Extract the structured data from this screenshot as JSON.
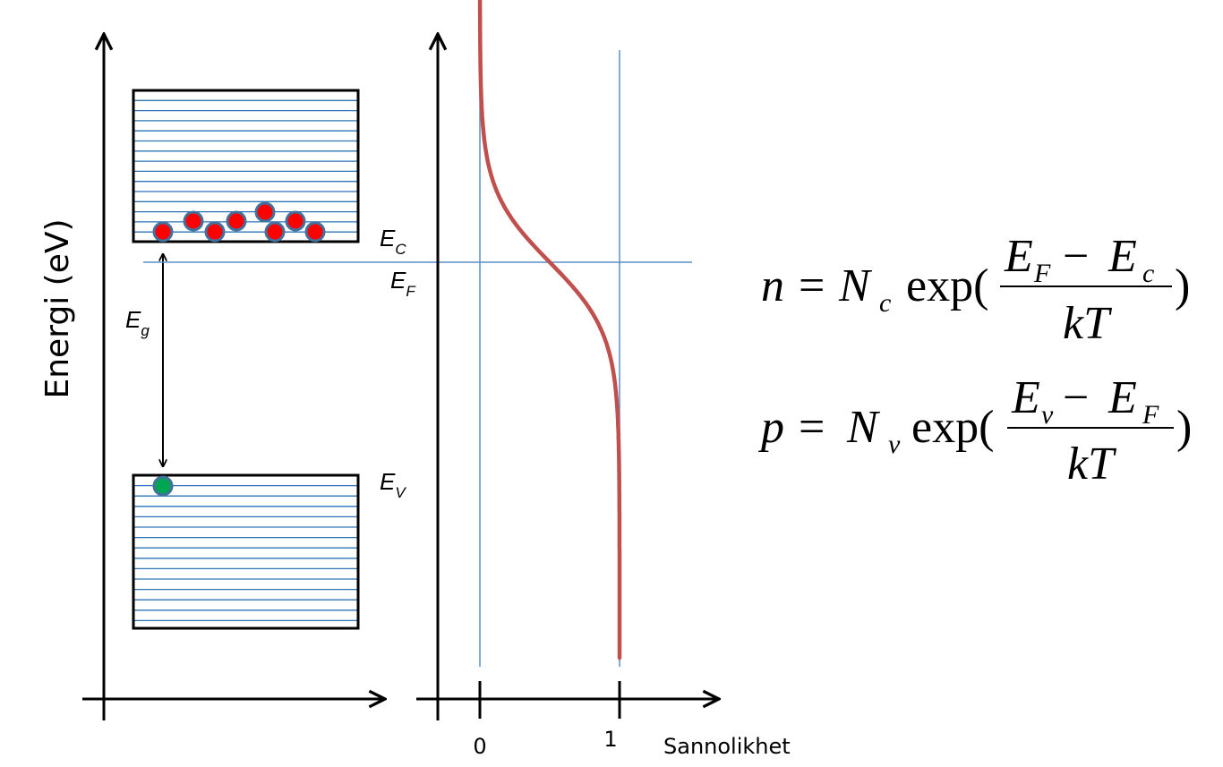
{
  "axis": {
    "energy_label": "Energi (eV)",
    "probability_label": "Sannolikhet",
    "tick_0": "0",
    "tick_1": "1"
  },
  "bands": {
    "conduction": {
      "symbol": "E",
      "sub": "C"
    },
    "fermi": {
      "symbol": "E",
      "sub": "F"
    },
    "valence": {
      "symbol": "E",
      "sub": "V"
    },
    "gap": {
      "symbol": "E",
      "sub": "g"
    }
  },
  "equations": {
    "n": {
      "lhs": "n",
      "equals": "=",
      "N": "N",
      "N_sub": "c",
      "exp": "exp(",
      "num_a": "E",
      "num_a_sub": "F",
      "minus": "−",
      "num_b": "E",
      "num_b_sub": "c",
      "den": "kT",
      "close": ")"
    },
    "p": {
      "lhs": "p",
      "equals": "=",
      "N": "N",
      "N_sub": "v",
      "exp": "exp(",
      "num_a": "E",
      "num_a_sub": "v",
      "minus": "−",
      "num_b": "E",
      "num_b_sub": "F",
      "den": "kT",
      "close": ")"
    }
  },
  "particles": {
    "electrons_in_conduction_band": 8,
    "holes_in_valence_band": 1
  },
  "fermi_dirac": {
    "x_at_fermi_level": 0.5,
    "x_deep_below_fermi": 1,
    "x_high_above_fermi": 0
  },
  "colors": {
    "axis": "#000000",
    "band_lines": "#2e75b6",
    "guide_lines": "#5b8fc9",
    "electron": "#ff0000",
    "hole": "#00a651",
    "particle_outline": "#41719c",
    "curve": "#c0504d"
  }
}
